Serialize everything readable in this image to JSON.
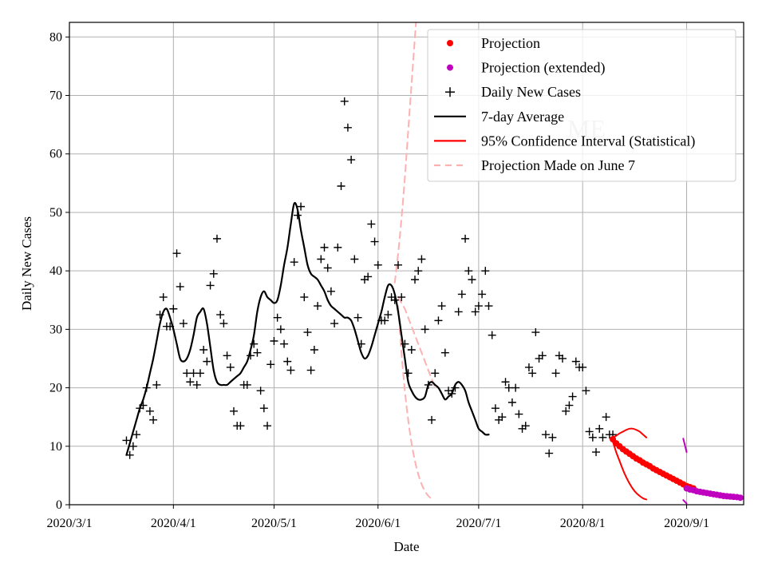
{
  "chart_data": {
    "type": "line",
    "title": "",
    "xlabel": "Date",
    "ylabel": "Daily New Cases",
    "xlim": [
      "2020-03-01",
      "2020-09-18"
    ],
    "ylim": [
      0,
      82.5
    ],
    "grid": true,
    "legend_position": "top-right",
    "watermark": "ME",
    "x_ticks": [
      {
        "date": "2020-03-01",
        "label": "2020/3/1"
      },
      {
        "date": "2020-04-01",
        "label": "2020/4/1"
      },
      {
        "date": "2020-05-01",
        "label": "2020/5/1"
      },
      {
        "date": "2020-06-01",
        "label": "2020/6/1"
      },
      {
        "date": "2020-07-01",
        "label": "2020/7/1"
      },
      {
        "date": "2020-08-01",
        "label": "2020/8/1"
      },
      {
        "date": "2020-09-01",
        "label": "2020/9/1"
      }
    ],
    "y_ticks": [
      0,
      10,
      20,
      30,
      40,
      50,
      60,
      70,
      80
    ],
    "legend": [
      {
        "label": "Projection",
        "color": "#ff0000",
        "marker": "dot"
      },
      {
        "label": "Projection (extended)",
        "color": "#bf00bf",
        "marker": "dot"
      },
      {
        "label": "Daily New Cases",
        "color": "#000000",
        "marker": "plus"
      },
      {
        "label": "7-day Average",
        "color": "#000000",
        "marker": "line"
      },
      {
        "label": "95% Confidence Interval (Statistical)",
        "color": "#ff0000",
        "marker": "line"
      },
      {
        "label": "Projection Made on June 7",
        "color": "#ffb0b0",
        "marker": "dashed"
      }
    ],
    "series": [
      {
        "name": "Daily New Cases",
        "start_date": "2020-03-18",
        "values": [
          11,
          8.5,
          10,
          12,
          16.5,
          17,
          20,
          16,
          14.5,
          20.5,
          32.5,
          35.5,
          30.5,
          30.5,
          33.5,
          43,
          37.3,
          31,
          22.5,
          21,
          22.5,
          20.5,
          22.5,
          26.5,
          24.5,
          37.5,
          39.5,
          45.5,
          32.5,
          31,
          25.5,
          23.5,
          16,
          13.5,
          13.5,
          20.5,
          20.5,
          25.5,
          27.5,
          26,
          19.5,
          16.5,
          13.5,
          24,
          28,
          32,
          30,
          27.5,
          24.5,
          23,
          41.5,
          49.5,
          51,
          35.5,
          29.5,
          23,
          26.5,
          34,
          42,
          44,
          40.5,
          36.5,
          31,
          44,
          54.5,
          69,
          64.5,
          59,
          42,
          32,
          27.5,
          38.5,
          39,
          48,
          45,
          41,
          31.5,
          31.5,
          32.5,
          35.5,
          35,
          41,
          35.5,
          27.5,
          22.5,
          26.5,
          38.5,
          40,
          42,
          30,
          20.5,
          14.5,
          22.5,
          31.5,
          34,
          26,
          19.5,
          19,
          20,
          33,
          36,
          45.5,
          40,
          38.5,
          33,
          34,
          36,
          40,
          34,
          29,
          16.5,
          14.5,
          15,
          21,
          20,
          17.5,
          20,
          15.5,
          13,
          13.5,
          23.5,
          22.5,
          29.5,
          25,
          25.5,
          12,
          8.8,
          11.5,
          22.5,
          25.5,
          25,
          16,
          17,
          18.5,
          24.5,
          23.5,
          23.5,
          19.5,
          12.5,
          11.5,
          9,
          13,
          11.5,
          15,
          12,
          12
        ]
      },
      {
        "name": "7-day Average",
        "start_date": "2020-03-18",
        "values": [
          8.5,
          10.5,
          12.5,
          14.5,
          16.5,
          18,
          20,
          22.5,
          25,
          28,
          31,
          33,
          33.5,
          32,
          30,
          27.5,
          25,
          24.5,
          25,
          26.5,
          29,
          32,
          33,
          33.5,
          31,
          27,
          23,
          21,
          20.5,
          20.5,
          20.5,
          21,
          21.5,
          22,
          22.5,
          23.5,
          24.5,
          26.5,
          29,
          33,
          35.5,
          36.5,
          35.5,
          35,
          34.5,
          35,
          37.5,
          41,
          44,
          48,
          51.5,
          50.5,
          47,
          44,
          41,
          39.5,
          39,
          38.5,
          37.5,
          36.5,
          35,
          34,
          33.5,
          33,
          32.5,
          32,
          32,
          31.5,
          30,
          28,
          26,
          25,
          25.5,
          27,
          29,
          31,
          33,
          35.5,
          37.5,
          37.5,
          36,
          33,
          29,
          25,
          21,
          19.5,
          18.5,
          18,
          18,
          18.5,
          20.5,
          21,
          20.5,
          20,
          19,
          18,
          18.5,
          19,
          20.5,
          21,
          20.5,
          19.5,
          17.5,
          16,
          14.5,
          13,
          12.5,
          12,
          12
        ]
      },
      {
        "name": "Projection",
        "start_date": "2020-08-10",
        "values": [
          11.2,
          10.5,
          10,
          9.5,
          9.1,
          8.7,
          8.3,
          7.9,
          7.6,
          7.2,
          6.9,
          6.6,
          6.2,
          5.9,
          5.6,
          5.3,
          5,
          4.7,
          4.4,
          4.1,
          3.8,
          3.5,
          3.2,
          3,
          2.8
        ]
      },
      {
        "name": "Projection (extended)",
        "start_date": "2020-09-01",
        "values": [
          2.8,
          2.6,
          2.5,
          2.3,
          2.2,
          2.1,
          2,
          1.9,
          1.8,
          1.7,
          1.6,
          1.5,
          1.45,
          1.4,
          1.35,
          1.3,
          1.2
        ]
      },
      {
        "name": "95% CI upper",
        "start_date": "2020-08-10",
        "values": [
          11.5,
          11.8,
          12.2,
          12.5,
          12.8,
          13,
          13,
          12.8,
          12.5,
          12,
          11.5
        ]
      },
      {
        "name": "95% CI upper (extended)",
        "start_date": "2020-08-31",
        "values": [
          11.3,
          9
        ]
      },
      {
        "name": "95% CI lower",
        "start_date": "2020-08-10",
        "values": [
          10.8,
          9,
          7.5,
          6,
          4.7,
          3.6,
          2.7,
          2,
          1.5,
          1.1,
          0.9
        ]
      },
      {
        "name": "95% CI lower (extended)",
        "start_date": "2020-08-31",
        "values": [
          0.8,
          0.2
        ]
      },
      {
        "name": "Projection Made on June 7 (upper)",
        "start_date": "2020-06-06",
        "values": [
          38,
          43,
          49,
          56,
          64,
          72,
          80,
          88
        ]
      },
      {
        "name": "Projection Made on June 7",
        "start_date": "2020-06-07",
        "values": [
          35.5,
          34.5,
          33.5,
          32,
          30.5,
          29,
          27.5,
          26,
          24.5,
          23,
          21.5,
          20
        ]
      },
      {
        "name": "Projection Made on June 7 (lower)",
        "start_date": "2020-06-07",
        "values": [
          34,
          26,
          19.5,
          14.5,
          10.5,
          7.5,
          5.2,
          3.5,
          2.3,
          1.5,
          1
        ]
      }
    ]
  }
}
